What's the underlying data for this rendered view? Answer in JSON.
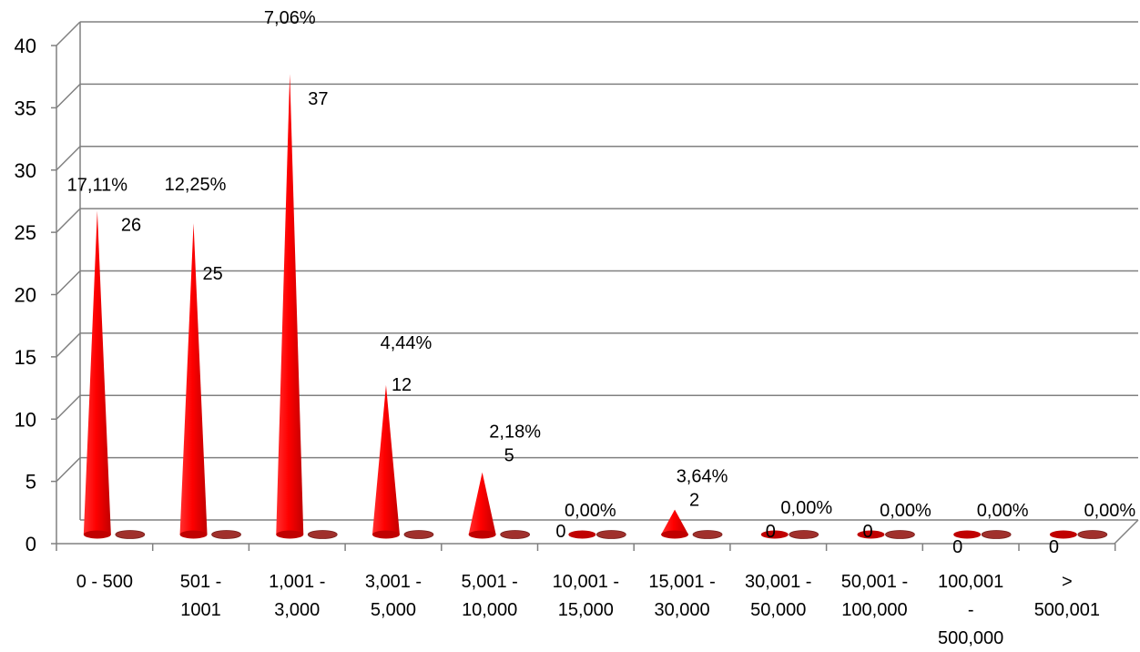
{
  "chart_data": {
    "type": "bar",
    "categories": [
      [
        "0 - 500"
      ],
      [
        "501 -",
        "1001"
      ],
      [
        "1,001 -",
        "3,000"
      ],
      [
        "3,001 -",
        "5,000"
      ],
      [
        "5,001 -",
        "10,000"
      ],
      [
        "10,001 -",
        "15,000"
      ],
      [
        "15,001 -",
        "30,000"
      ],
      [
        "30,001 -",
        "50,000"
      ],
      [
        "50,001 -",
        "100,000"
      ],
      [
        "100,001",
        "-",
        "500,000"
      ],
      [
        ">",
        "500,001"
      ]
    ],
    "series": [
      {
        "values": [
          26,
          25,
          37,
          12,
          5,
          0,
          2,
          0,
          0,
          0,
          0
        ]
      },
      {
        "values": [
          17.11,
          12.25,
          7.06,
          4.44,
          2.18,
          0.0,
          3.64,
          0.0,
          0.0,
          0.0,
          0.0
        ]
      }
    ],
    "value_labels": [
      "26",
      "25",
      "37",
      "12",
      "5",
      "0",
      "2",
      "0",
      "0",
      "0",
      "0"
    ],
    "percent_labels": [
      "17,11%",
      "12,25%",
      "7,06%",
      "4,44%",
      "2,18%",
      "0,00%",
      "3,64%",
      "0,00%",
      "0,00%",
      "0,00%",
      "0,00%"
    ],
    "yticks": [
      "0",
      "5",
      "10",
      "15",
      "20",
      "25",
      "30",
      "35",
      "40"
    ],
    "ylim": [
      0,
      40
    ],
    "grid": true,
    "style": "3d-cone",
    "colors": {
      "cone": "#ff0000",
      "cone_dark": "#c00000",
      "disc": "#a0302c",
      "grid": "#808080"
    }
  }
}
